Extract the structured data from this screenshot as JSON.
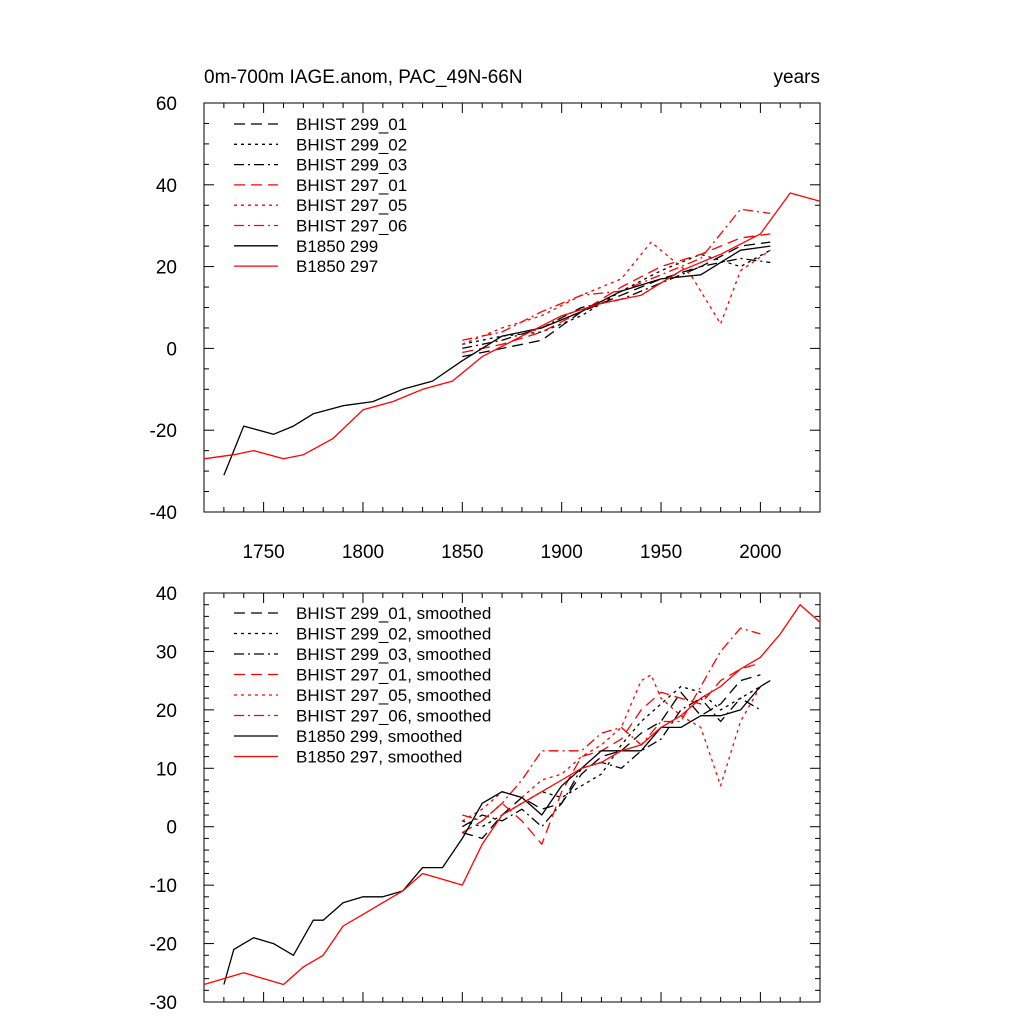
{
  "chart_data": [
    {
      "type": "line",
      "title": "0m-700m IAGE.anom, PAC_49N-66N",
      "units": "years",
      "xlim": [
        1720,
        2030
      ],
      "ylim": [
        -40,
        60
      ],
      "xticks": [
        1750,
        1800,
        1850,
        1900,
        1950,
        2000
      ],
      "yticks": [
        -40,
        -20,
        0,
        20,
        40,
        60
      ],
      "grid": false,
      "legend_position": "top-left",
      "series": [
        {
          "name": "BHIST 299_01",
          "color": "#000000",
          "dash": "dash",
          "x": [
            1850,
            1870,
            1890,
            1910,
            1930,
            1950,
            1970,
            1990,
            2005
          ],
          "y": [
            -2,
            0,
            2,
            9,
            13,
            17,
            20,
            25,
            26
          ]
        },
        {
          "name": "BHIST 299_02",
          "color": "#000000",
          "dash": "dot",
          "x": [
            1850,
            1870,
            1890,
            1910,
            1930,
            1950,
            1970,
            1990,
            2005
          ],
          "y": [
            1,
            3,
            4,
            8,
            14,
            19,
            23,
            20,
            24
          ]
        },
        {
          "name": "BHIST 299_03",
          "color": "#000000",
          "dash": "dashdot",
          "x": [
            1850,
            1870,
            1890,
            1910,
            1930,
            1950,
            1970,
            1990,
            2005
          ],
          "y": [
            0,
            2,
            5,
            10,
            12,
            16,
            20,
            22,
            21
          ]
        },
        {
          "name": "BHIST 297_01",
          "color": "#ff0000",
          "dash": "dash",
          "x": [
            1850,
            1870,
            1890,
            1910,
            1930,
            1950,
            1970,
            1990,
            2005
          ],
          "y": [
            -1,
            1,
            4,
            9,
            15,
            20,
            23,
            27,
            28
          ]
        },
        {
          "name": "BHIST 297_05",
          "color": "#ff0000",
          "dash": "dot",
          "x": [
            1850,
            1870,
            1890,
            1910,
            1930,
            1945,
            1965,
            1980,
            1990,
            2005
          ],
          "y": [
            1,
            5,
            8,
            13,
            17,
            26,
            18,
            6,
            19,
            24
          ]
        },
        {
          "name": "BHIST 297_06",
          "color": "#ff0000",
          "dash": "dashdot",
          "x": [
            1850,
            1870,
            1890,
            1910,
            1930,
            1950,
            1970,
            1990,
            2005
          ],
          "y": [
            2,
            4,
            9,
            13,
            14,
            18,
            22,
            34,
            33
          ]
        },
        {
          "name": "B1850 299",
          "color": "#000000",
          "dash": "solid",
          "x": [
            1730,
            1740,
            1755,
            1765,
            1775,
            1790,
            1805,
            1820,
            1835,
            1850,
            1870,
            1890,
            1910,
            1930,
            1950,
            1970,
            1990,
            2005
          ],
          "y": [
            -31,
            -19,
            -21,
            -19,
            -16,
            -14,
            -13,
            -10,
            -8,
            -3,
            3,
            5,
            9,
            14,
            17,
            18,
            24,
            25
          ]
        },
        {
          "name": "B1850 297",
          "color": "#ff0000",
          "dash": "solid",
          "x": [
            1720,
            1735,
            1745,
            1760,
            1770,
            1785,
            1800,
            1815,
            1830,
            1845,
            1860,
            1880,
            1900,
            1920,
            1940,
            1960,
            1980,
            2000,
            2015,
            2030
          ],
          "y": [
            -27,
            -26,
            -25,
            -27,
            -26,
            -22,
            -15,
            -13,
            -10,
            -8,
            -2,
            3,
            8,
            11,
            13,
            19,
            23,
            28,
            38,
            36
          ]
        }
      ]
    },
    {
      "type": "line",
      "xlim": [
        1720,
        2030
      ],
      "ylim": [
        -30,
        40
      ],
      "xticks": [
        1750,
        1800,
        1850,
        1900,
        1950,
        2000
      ],
      "yticks": [
        -30,
        -20,
        -10,
        0,
        10,
        20,
        30,
        40
      ],
      "grid": false,
      "legend_position": "top-left",
      "series": [
        {
          "name": "BHIST 299_01, smoothed",
          "color": "#000000",
          "dash": "dash",
          "x": [
            1850,
            1860,
            1870,
            1880,
            1890,
            1900,
            1910,
            1920,
            1930,
            1940,
            1950,
            1960,
            1970,
            1980,
            1990,
            2000
          ],
          "y": [
            -1,
            -2,
            2,
            5,
            3,
            4,
            9,
            12,
            13,
            16,
            18,
            23,
            19,
            21,
            25,
            26
          ]
        },
        {
          "name": "BHIST 299_02, smoothed",
          "color": "#000000",
          "dash": "dot",
          "x": [
            1850,
            1860,
            1870,
            1880,
            1890,
            1900,
            1910,
            1920,
            1930,
            1940,
            1950,
            1960,
            1970,
            1980,
            1990,
            2000
          ],
          "y": [
            1,
            0,
            2,
            4,
            6,
            5,
            7,
            9,
            14,
            18,
            21,
            24,
            23,
            20,
            22,
            24
          ]
        },
        {
          "name": "BHIST 299_03, smoothed",
          "color": "#000000",
          "dash": "dashdot",
          "x": [
            1850,
            1860,
            1870,
            1880,
            1890,
            1900,
            1910,
            1920,
            1930,
            1940,
            1950,
            1960,
            1970,
            1980,
            1990,
            2000
          ],
          "y": [
            0,
            2,
            1,
            3,
            0,
            4,
            10,
            11,
            10,
            13,
            15,
            20,
            22,
            18,
            22,
            20
          ]
        },
        {
          "name": "BHIST 297_01, smoothed",
          "color": "#ff0000",
          "dash": "dash",
          "x": [
            1850,
            1860,
            1870,
            1880,
            1890,
            1900,
            1910,
            1920,
            1930,
            1940,
            1950,
            1960,
            1970,
            1980,
            1990,
            2000
          ],
          "y": [
            -1,
            1,
            4,
            1,
            -3,
            6,
            12,
            13,
            15,
            20,
            23,
            22,
            21,
            25,
            27,
            28
          ]
        },
        {
          "name": "BHIST 297_05, smoothed",
          "color": "#ff0000",
          "dash": "dot",
          "x": [
            1850,
            1860,
            1870,
            1880,
            1890,
            1900,
            1910,
            1920,
            1930,
            1940,
            1945,
            1950,
            1960,
            1970,
            1980,
            1990,
            2000
          ],
          "y": [
            1,
            3,
            6,
            5,
            8,
            9,
            12,
            14,
            17,
            25,
            26,
            22,
            19,
            17,
            7,
            18,
            24
          ]
        },
        {
          "name": "BHIST 297_06, smoothed",
          "color": "#ff0000",
          "dash": "dashdot",
          "x": [
            1850,
            1860,
            1870,
            1880,
            1890,
            1900,
            1910,
            1920,
            1930,
            1940,
            1950,
            1960,
            1970,
            1980,
            1990,
            2000
          ],
          "y": [
            2,
            1,
            4,
            8,
            13,
            13,
            13,
            16,
            17,
            14,
            18,
            18,
            24,
            30,
            34,
            33
          ]
        },
        {
          "name": "B1850 299, smoothed",
          "color": "#000000",
          "dash": "solid",
          "x": [
            1730,
            1735,
            1745,
            1755,
            1765,
            1775,
            1780,
            1790,
            1800,
            1810,
            1820,
            1830,
            1840,
            1850,
            1860,
            1870,
            1880,
            1890,
            1900,
            1910,
            1920,
            1930,
            1940,
            1950,
            1960,
            1970,
            1980,
            1990,
            2000,
            2005
          ],
          "y": [
            -27,
            -21,
            -19,
            -20,
            -22,
            -16,
            -16,
            -13,
            -12,
            -12,
            -11,
            -7,
            -7,
            -2,
            4,
            6,
            5,
            2,
            7,
            10,
            13,
            13,
            13,
            17,
            17,
            19,
            19,
            20,
            24,
            25
          ]
        },
        {
          "name": "B1850 297, smoothed",
          "color": "#ff0000",
          "dash": "solid",
          "x": [
            1720,
            1730,
            1740,
            1750,
            1760,
            1770,
            1780,
            1790,
            1800,
            1810,
            1820,
            1830,
            1840,
            1850,
            1860,
            1870,
            1880,
            1890,
            1900,
            1910,
            1920,
            1930,
            1940,
            1950,
            1960,
            1970,
            1980,
            1990,
            2000,
            2010,
            2020,
            2030
          ],
          "y": [
            -27,
            -26,
            -25,
            -26,
            -27,
            -24,
            -22,
            -17,
            -15,
            -13,
            -11,
            -8,
            -9,
            -10,
            -3,
            2,
            4,
            6,
            8,
            10,
            11,
            13,
            14,
            17,
            19,
            22,
            24,
            27,
            29,
            33,
            38,
            35
          ]
        }
      ]
    }
  ]
}
